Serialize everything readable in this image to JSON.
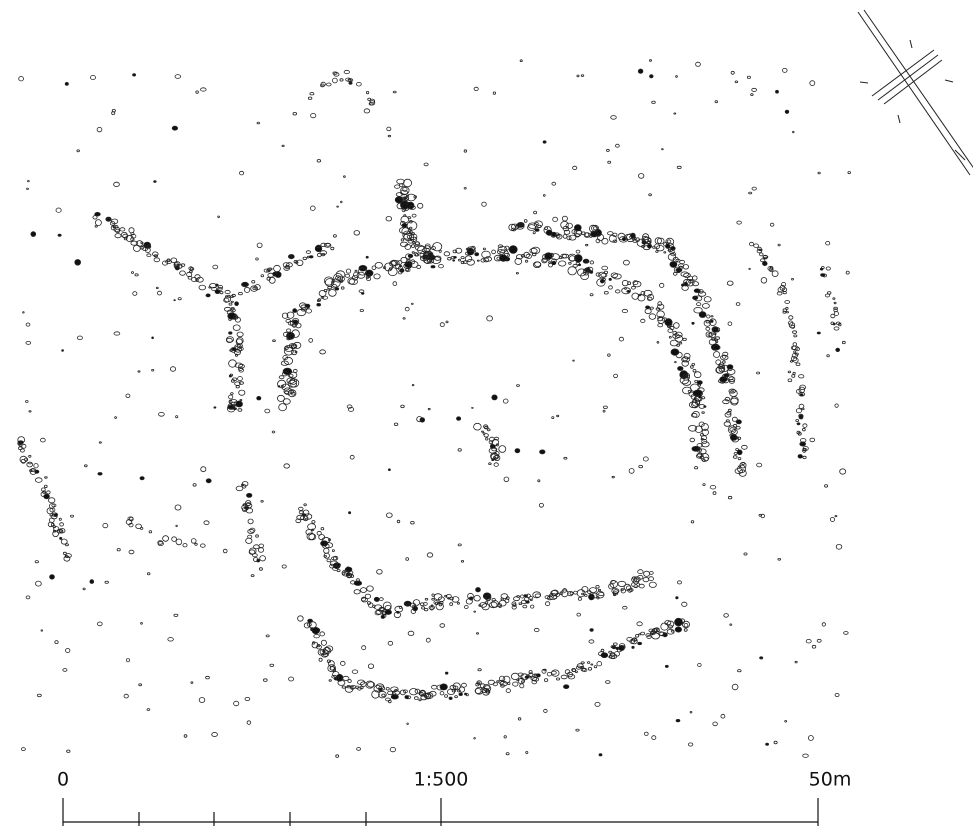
{
  "scale_bar": {
    "start_label": "0",
    "ratio": "1:500",
    "end_label": "50m"
  }
}
